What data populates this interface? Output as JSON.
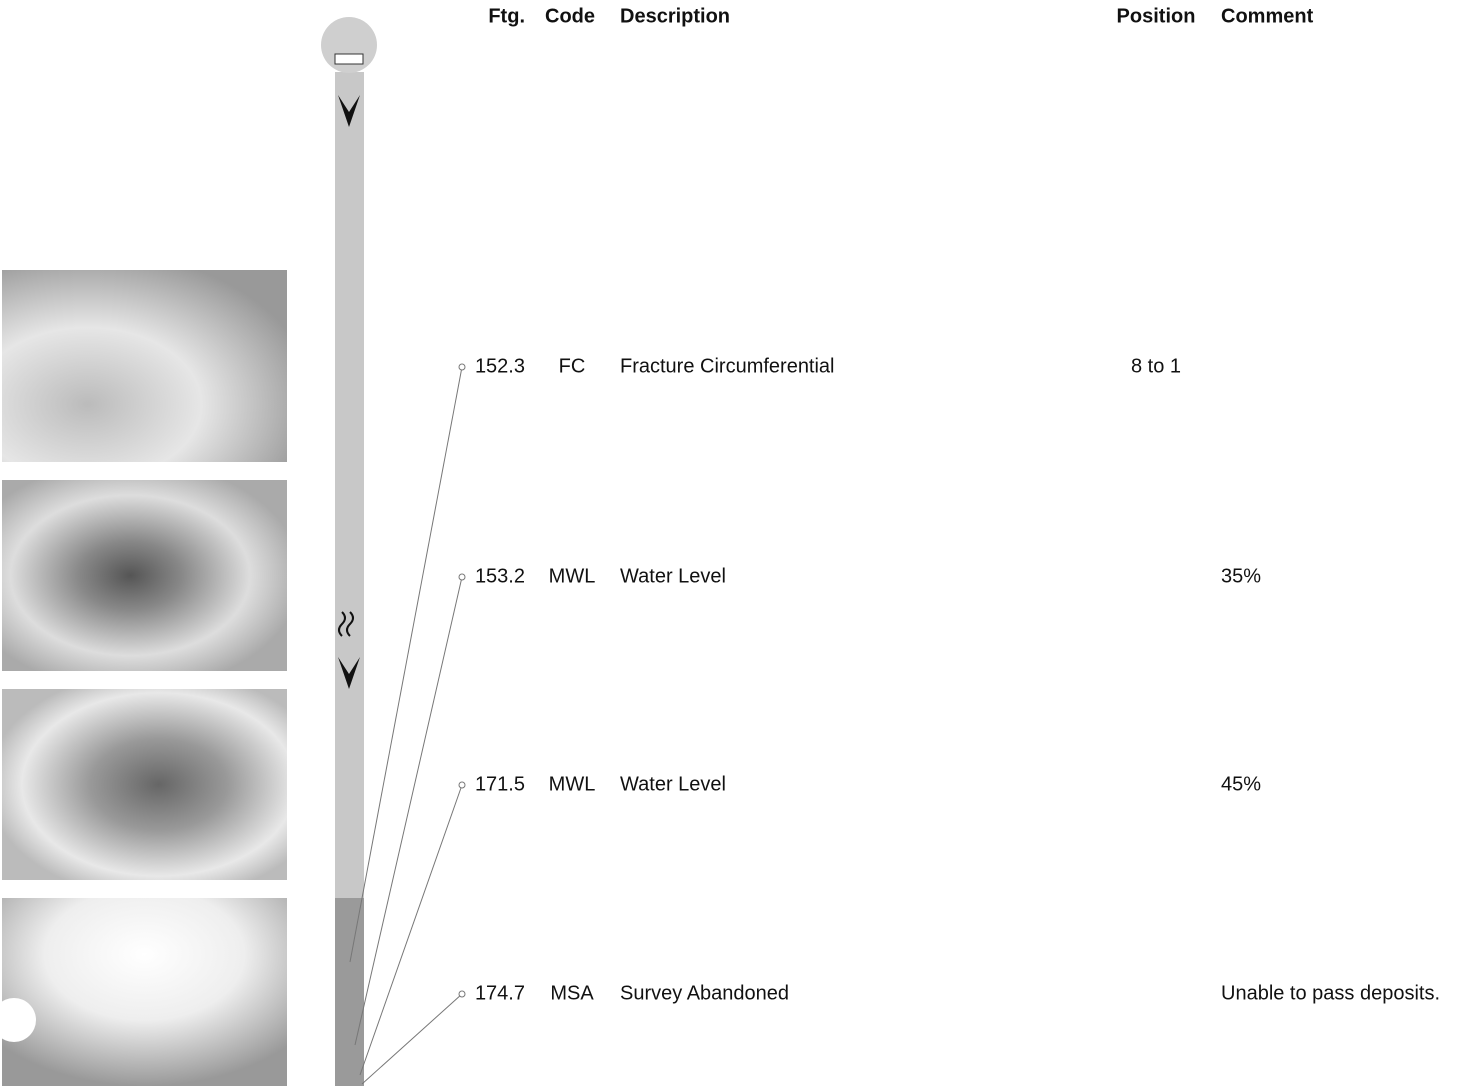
{
  "table": {
    "header": {
      "ftg": "Ftg.",
      "code": "Code",
      "description": "Description",
      "position": "Position",
      "comment": "Comment"
    },
    "rows": [
      {
        "ftg": 152.3,
        "code": "FC",
        "description": "Fracture Circumferential",
        "position": "8 to 1"
      },
      {
        "ftg": 153.2,
        "code": "MWL",
        "description": "Water Level",
        "comment": "35%"
      },
      {
        "ftg": 171.5,
        "code": "MWL",
        "description": "Water Level",
        "comment": "45%"
      },
      {
        "ftg": 174.7,
        "code": "MSA",
        "description": "Survey Abandoned",
        "comment": "Unable to pass deposits."
      }
    ]
  }
}
